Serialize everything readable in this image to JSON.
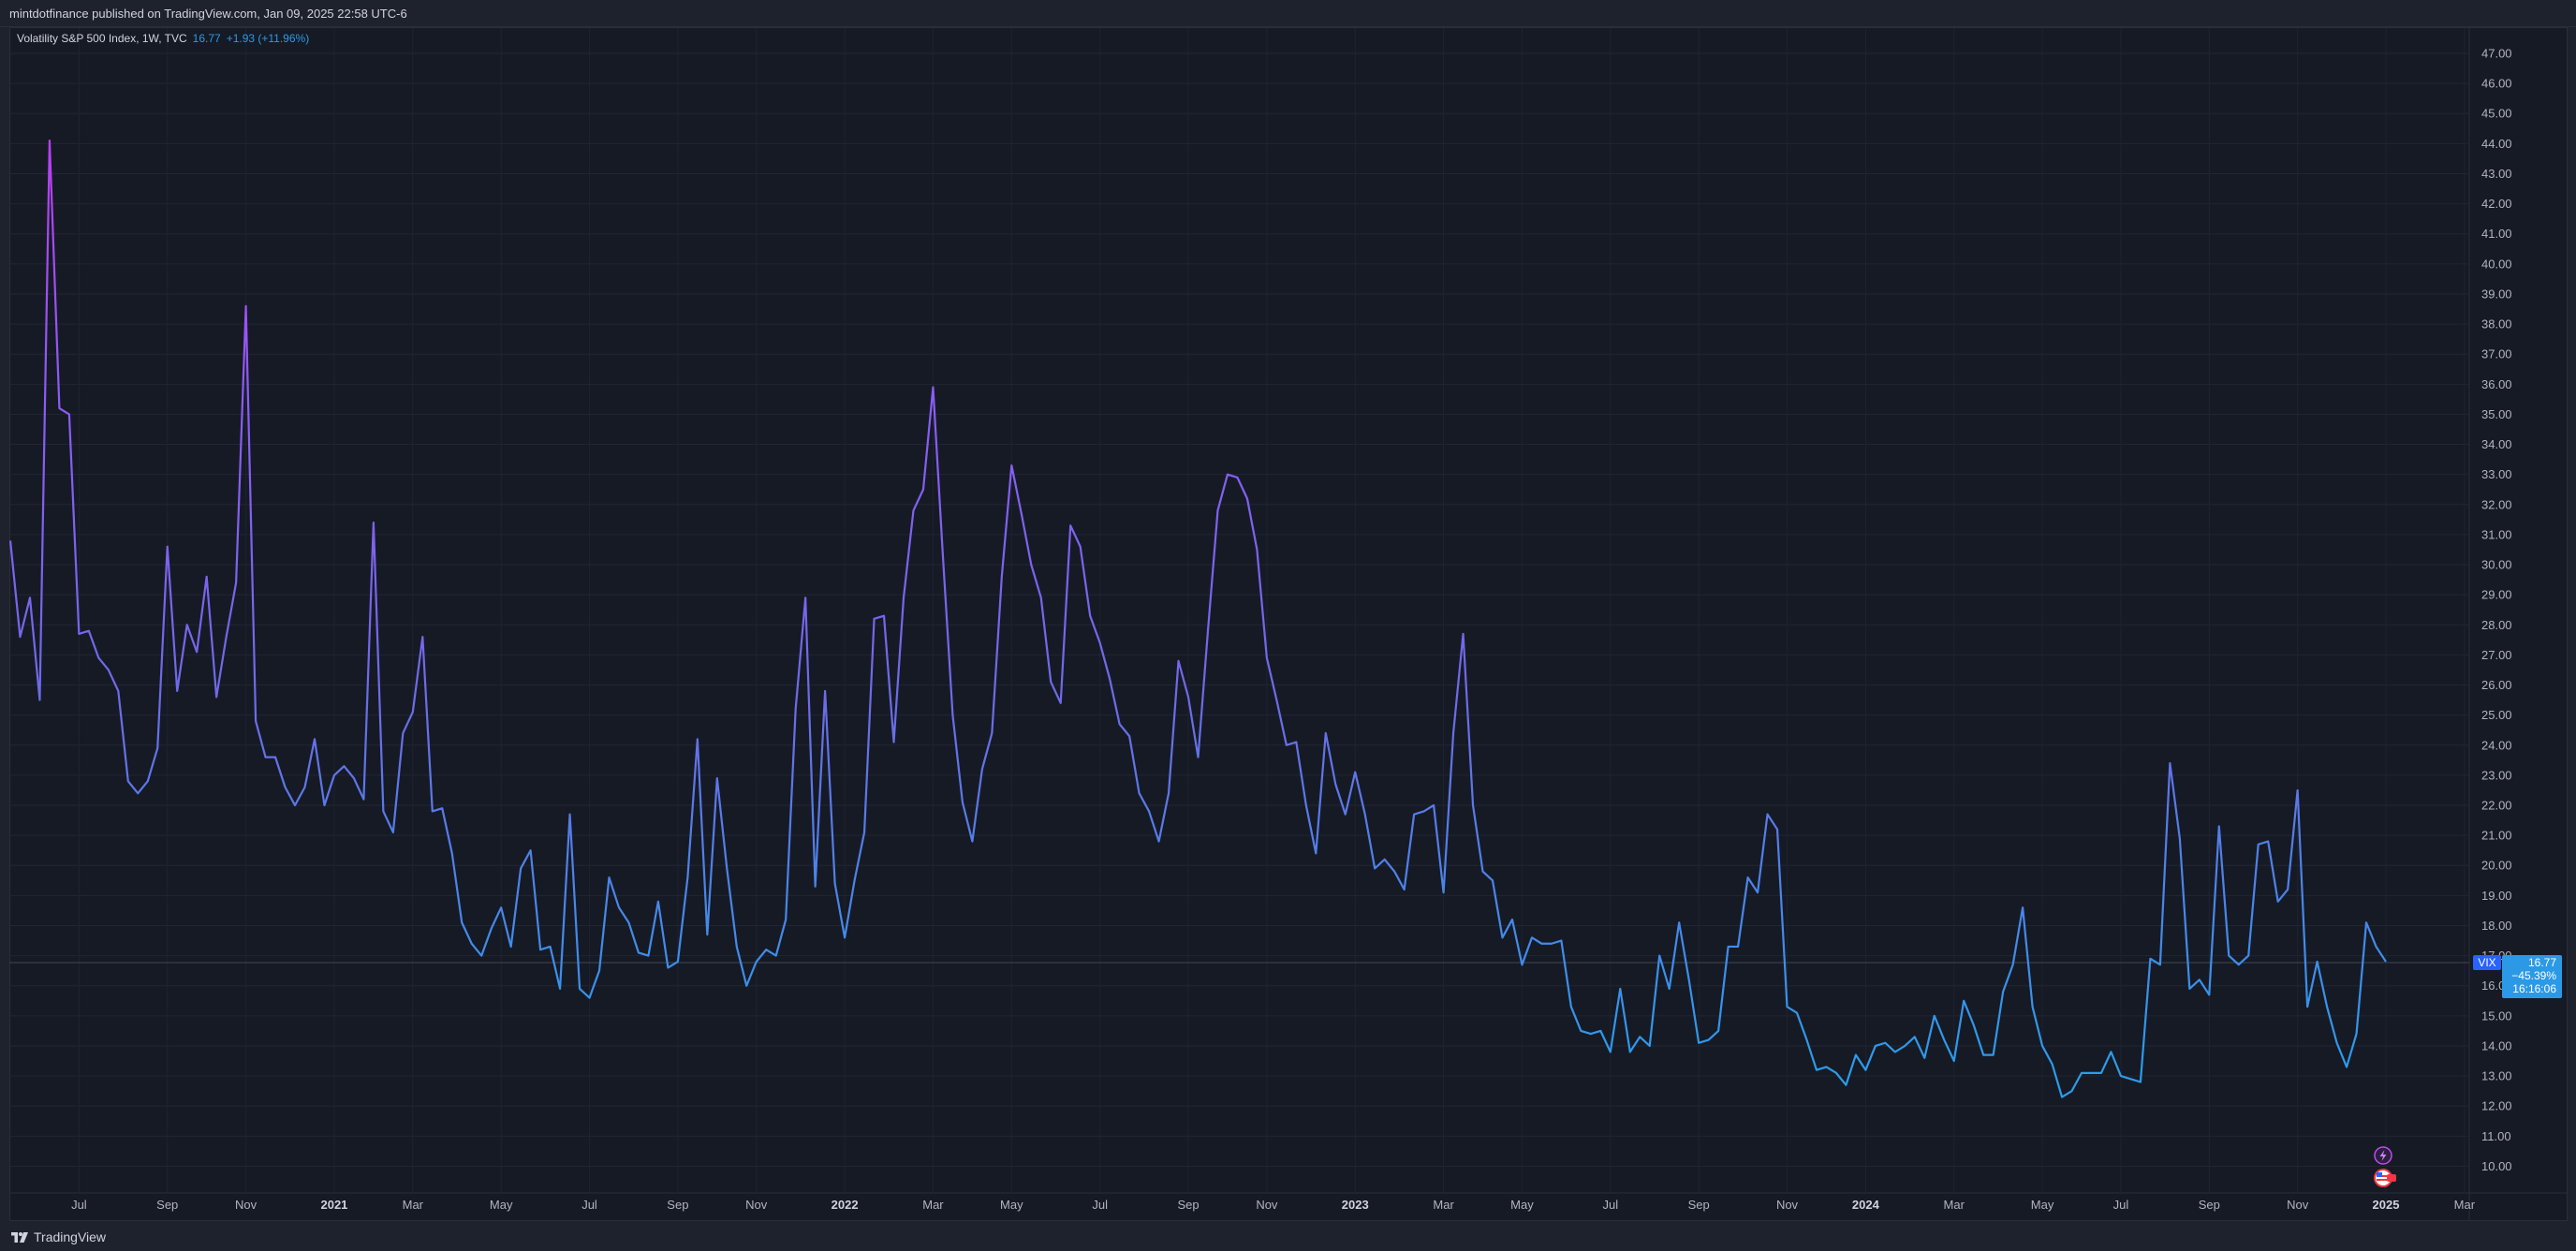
{
  "header": {
    "publish_text": "mintdotfinance published on TradingView.com, Jan 09, 2025 22:58 UTC-6"
  },
  "legend": {
    "symbol_text": "Volatility S&P 500 Index, 1W, TVC",
    "last_value": "16.77",
    "change": "+1.93 (+11.96%)"
  },
  "price_label": {
    "symbol": "VIX",
    "value": "16.77",
    "change_pct": "−45.39%",
    "countdown": "16:16:06"
  },
  "footer": {
    "brand": "TradingView"
  },
  "icons": {
    "lightning": "lightning-icon",
    "flag": "us-flag-icon"
  },
  "chart_data": {
    "type": "line",
    "title": "",
    "xlabel": "",
    "ylabel": "",
    "ylim": [
      9.4,
      47.5
    ],
    "y_ticks": [
      "10.00",
      "11.00",
      "12.00",
      "13.00",
      "14.00",
      "15.00",
      "16.00",
      "17.00",
      "18.00",
      "19.00",
      "20.00",
      "21.00",
      "22.00",
      "23.00",
      "24.00",
      "25.00",
      "26.00",
      "27.00",
      "28.00",
      "29.00",
      "30.00",
      "31.00",
      "32.00",
      "33.00",
      "34.00",
      "35.00",
      "36.00",
      "37.00",
      "38.00",
      "39.00",
      "40.00",
      "41.00",
      "42.00",
      "43.00",
      "44.00",
      "45.00",
      "46.00",
      "47.00"
    ],
    "x_ticks": [
      {
        "label": "Jul",
        "week": 7,
        "bold": false
      },
      {
        "label": "Sep",
        "week": 16,
        "bold": false
      },
      {
        "label": "Nov",
        "week": 24,
        "bold": false
      },
      {
        "label": "2021",
        "week": 33,
        "bold": true
      },
      {
        "label": "Mar",
        "week": 41,
        "bold": false
      },
      {
        "label": "May",
        "week": 50,
        "bold": false
      },
      {
        "label": "Jul",
        "week": 59,
        "bold": false
      },
      {
        "label": "Sep",
        "week": 68,
        "bold": false
      },
      {
        "label": "Nov",
        "week": 76,
        "bold": false
      },
      {
        "label": "2022",
        "week": 85,
        "bold": true
      },
      {
        "label": "Mar",
        "week": 94,
        "bold": false
      },
      {
        "label": "May",
        "week": 102,
        "bold": false
      },
      {
        "label": "Jul",
        "week": 111,
        "bold": false
      },
      {
        "label": "Sep",
        "week": 120,
        "bold": false
      },
      {
        "label": "Nov",
        "week": 128,
        "bold": false
      },
      {
        "label": "2023",
        "week": 137,
        "bold": true
      },
      {
        "label": "Mar",
        "week": 146,
        "bold": false
      },
      {
        "label": "May",
        "week": 154,
        "bold": false
      },
      {
        "label": "Jul",
        "week": 163,
        "bold": false
      },
      {
        "label": "Sep",
        "week": 172,
        "bold": false
      },
      {
        "label": "Nov",
        "week": 181,
        "bold": false
      },
      {
        "label": "2024",
        "week": 189,
        "bold": true
      },
      {
        "label": "Mar",
        "week": 198,
        "bold": false
      },
      {
        "label": "May",
        "week": 207,
        "bold": false
      },
      {
        "label": "Jul",
        "week": 215,
        "bold": false
      },
      {
        "label": "Sep",
        "week": 224,
        "bold": false
      },
      {
        "label": "Nov",
        "week": 233,
        "bold": false
      },
      {
        "label": "2025",
        "week": 242,
        "bold": true
      },
      {
        "label": "Mar",
        "week": 250,
        "bold": false
      }
    ],
    "series": [
      {
        "values": [
          30.8,
          27.6,
          28.9,
          25.5,
          44.1,
          35.2,
          35.0,
          27.7,
          27.8,
          26.9,
          26.5,
          25.8,
          22.8,
          22.4,
          22.8,
          23.9,
          30.6,
          25.8,
          28.0,
          27.1,
          29.6,
          25.6,
          27.6,
          29.4,
          38.6,
          24.8,
          23.6,
          23.6,
          22.6,
          22.0,
          22.6,
          24.2,
          22.0,
          23.0,
          23.3,
          22.9,
          22.2,
          31.4,
          21.8,
          21.1,
          24.4,
          25.1,
          27.6,
          21.8,
          21.9,
          20.4,
          18.1,
          17.4,
          17.0,
          17.9,
          18.6,
          17.3,
          19.9,
          20.5,
          17.2,
          17.3,
          15.9,
          21.7,
          15.9,
          15.6,
          16.5,
          19.6,
          18.6,
          18.1,
          17.1,
          17.0,
          18.8,
          16.6,
          16.8,
          19.6,
          24.2,
          17.7,
          22.9,
          19.9,
          17.3,
          16.0,
          16.8,
          17.2,
          17.0,
          18.2,
          25.2,
          28.9,
          19.3,
          25.8,
          19.4,
          17.6,
          19.5,
          21.1,
          28.2,
          28.3,
          24.1,
          28.9,
          31.8,
          32.5,
          35.9,
          30.3,
          25.0,
          22.1,
          20.8,
          23.2,
          24.4,
          29.6,
          33.3,
          31.7,
          30.0,
          28.9,
          26.1,
          25.4,
          31.3,
          30.6,
          28.3,
          27.4,
          26.2,
          24.7,
          24.3,
          22.4,
          21.8,
          20.8,
          22.4,
          26.8,
          25.6,
          23.6,
          27.8,
          31.8,
          33.0,
          32.9,
          32.2,
          30.5,
          26.9,
          25.5,
          24.0,
          24.1,
          22.0,
          20.4,
          24.4,
          22.7,
          21.7,
          23.1,
          21.7,
          19.9,
          20.2,
          19.8,
          19.2,
          21.7,
          21.8,
          22.0,
          19.1,
          24.4,
          27.7,
          22.0,
          19.8,
          19.5,
          17.6,
          18.2,
          16.7,
          17.6,
          17.4,
          17.4,
          17.5,
          15.3,
          14.5,
          14.4,
          14.5,
          13.8,
          15.9,
          13.8,
          14.3,
          14.0,
          17.0,
          15.9,
          18.1,
          16.2,
          14.1,
          14.2,
          14.5,
          17.3,
          17.3,
          19.6,
          19.1,
          21.7,
          21.2,
          15.3,
          15.1,
          14.2,
          13.2,
          13.3,
          13.1,
          12.7,
          13.7,
          13.2,
          14.0,
          14.1,
          13.8,
          14.0,
          14.3,
          13.6,
          15.0,
          14.2,
          13.5,
          15.5,
          14.7,
          13.7,
          13.7,
          15.8,
          16.7,
          18.6,
          15.3,
          14.0,
          13.4,
          12.3,
          12.5,
          13.1,
          13.1,
          13.1,
          13.8,
          13.0,
          12.9,
          12.8,
          16.9,
          16.7,
          23.4,
          20.9,
          15.9,
          16.2,
          15.7,
          21.3,
          17.0,
          16.7,
          17.0,
          20.7,
          20.8,
          18.8,
          19.2,
          22.5,
          15.3,
          16.8,
          15.3,
          14.1,
          13.3,
          14.4,
          18.1,
          17.3,
          16.8
        ]
      }
    ]
  }
}
